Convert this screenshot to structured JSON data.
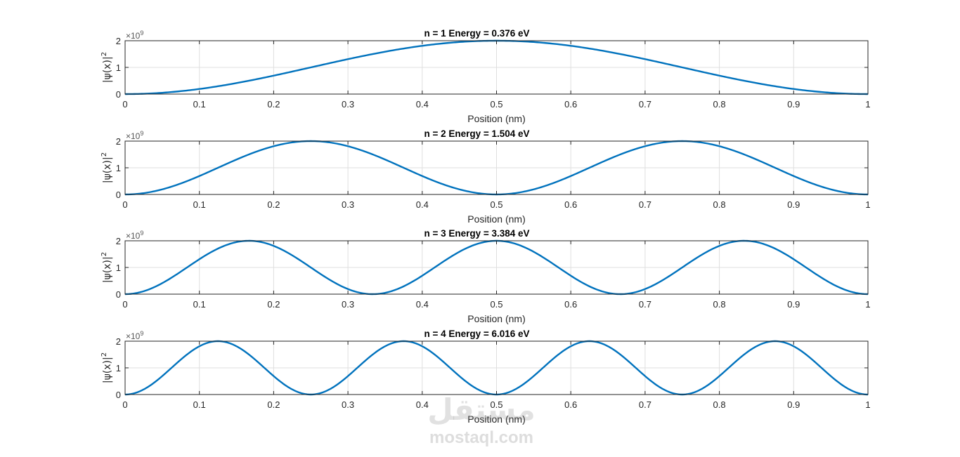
{
  "figure": {
    "background": "#ffffff",
    "line_color": "#0072bd",
    "grid_color": "#dfdfdf",
    "axis_color": "#262626"
  },
  "watermark": {
    "arabic": "مستقل",
    "latin": "mostaql.com"
  },
  "chart_data": [
    {
      "type": "line",
      "title": "n = 1    Energy = 0.376 eV",
      "n": 1,
      "function": "2e9 * sin^2(n*pi*x/L), L = 1 nm",
      "x": [
        0,
        0.05,
        0.1,
        0.15,
        0.2,
        0.25,
        0.3,
        0.35,
        0.4,
        0.45,
        0.5,
        0.55,
        0.6,
        0.65,
        0.7,
        0.75,
        0.8,
        0.85,
        0.9,
        0.95,
        1
      ],
      "y": [
        0,
        0.049,
        0.191,
        0.412,
        0.691,
        1.0,
        1.309,
        1.588,
        1.809,
        1.951,
        2.0,
        1.951,
        1.809,
        1.588,
        1.309,
        1.0,
        0.691,
        0.412,
        0.191,
        0.049,
        0
      ],
      "xlabel": "Position (nm)",
      "ylabel": "|ψ(x)|",
      "ylabel_sup": "2",
      "exponent": "×10",
      "exponent_sup": "9",
      "xlim": [
        0,
        1
      ],
      "ylim": [
        0,
        2
      ],
      "xticks": [
        "0",
        "0.1",
        "0.2",
        "0.3",
        "0.4",
        "0.5",
        "0.6",
        "0.7",
        "0.8",
        "0.9",
        "1"
      ],
      "yticks": [
        "0",
        "1",
        "2"
      ],
      "grid": true
    },
    {
      "type": "line",
      "title": "n = 2    Energy = 1.504 eV",
      "n": 2,
      "function": "2e9 * sin^2(n*pi*x/L), L = 1 nm",
      "x": [
        0,
        0.05,
        0.1,
        0.15,
        0.2,
        0.25,
        0.3,
        0.35,
        0.4,
        0.45,
        0.5,
        0.55,
        0.6,
        0.65,
        0.7,
        0.75,
        0.8,
        0.85,
        0.9,
        0.95,
        1
      ],
      "y": [
        0,
        0.191,
        0.691,
        1.309,
        1.809,
        2.0,
        1.809,
        1.309,
        0.691,
        0.191,
        0,
        0.191,
        0.691,
        1.309,
        1.809,
        2.0,
        1.809,
        1.309,
        0.691,
        0.191,
        0
      ],
      "xlabel": "Position (nm)",
      "ylabel": "|ψ(x)|",
      "ylabel_sup": "2",
      "exponent": "×10",
      "exponent_sup": "9",
      "xlim": [
        0,
        1
      ],
      "ylim": [
        0,
        2
      ],
      "xticks": [
        "0",
        "0.1",
        "0.2",
        "0.3",
        "0.4",
        "0.5",
        "0.6",
        "0.7",
        "0.8",
        "0.9",
        "1"
      ],
      "yticks": [
        "0",
        "1",
        "2"
      ],
      "grid": true
    },
    {
      "type": "line",
      "title": "n = 3    Energy = 3.384 eV",
      "n": 3,
      "function": "2e9 * sin^2(n*pi*x/L), L = 1 nm",
      "x": [
        0,
        0.05,
        0.1,
        0.15,
        0.2,
        0.25,
        0.3,
        0.35,
        0.4,
        0.45,
        0.5,
        0.55,
        0.6,
        0.65,
        0.7,
        0.75,
        0.8,
        0.85,
        0.9,
        0.95,
        1
      ],
      "y": [
        0,
        0.412,
        1.309,
        1.951,
        1.809,
        1.0,
        0.191,
        0.049,
        0.691,
        1.588,
        2.0,
        1.588,
        0.691,
        0.049,
        0.191,
        1.0,
        1.809,
        1.951,
        1.309,
        0.412,
        0
      ],
      "xlabel": "Position (nm)",
      "ylabel": "|ψ(x)|",
      "ylabel_sup": "2",
      "exponent": "×10",
      "exponent_sup": "9",
      "xlim": [
        0,
        1
      ],
      "ylim": [
        0,
        2
      ],
      "xticks": [
        "0",
        "0.1",
        "0.2",
        "0.3",
        "0.4",
        "0.5",
        "0.6",
        "0.7",
        "0.8",
        "0.9",
        "1"
      ],
      "yticks": [
        "0",
        "1",
        "2"
      ],
      "grid": true
    },
    {
      "type": "line",
      "title": "n = 4    Energy = 6.016 eV",
      "n": 4,
      "function": "2e9 * sin^2(n*pi*x/L), L = 1 nm",
      "x": [
        0,
        0.05,
        0.1,
        0.15,
        0.2,
        0.25,
        0.3,
        0.35,
        0.4,
        0.45,
        0.5,
        0.55,
        0.6,
        0.65,
        0.7,
        0.75,
        0.8,
        0.85,
        0.9,
        0.95,
        1
      ],
      "y": [
        0,
        0.691,
        1.809,
        1.809,
        0.691,
        0,
        0.691,
        1.809,
        1.809,
        0.691,
        0,
        0.691,
        1.809,
        1.809,
        0.691,
        0,
        0.691,
        1.809,
        1.809,
        0.691,
        0
      ],
      "xlabel": "Position (nm)",
      "ylabel": "|ψ(x)|",
      "ylabel_sup": "2",
      "exponent": "×10",
      "exponent_sup": "9",
      "xlim": [
        0,
        1
      ],
      "ylim": [
        0,
        2
      ],
      "xticks": [
        "0",
        "0.1",
        "0.2",
        "0.3",
        "0.4",
        "0.5",
        "0.6",
        "0.7",
        "0.8",
        "0.9",
        "1"
      ],
      "yticks": [
        "0",
        "1",
        "2"
      ],
      "grid": true
    }
  ]
}
